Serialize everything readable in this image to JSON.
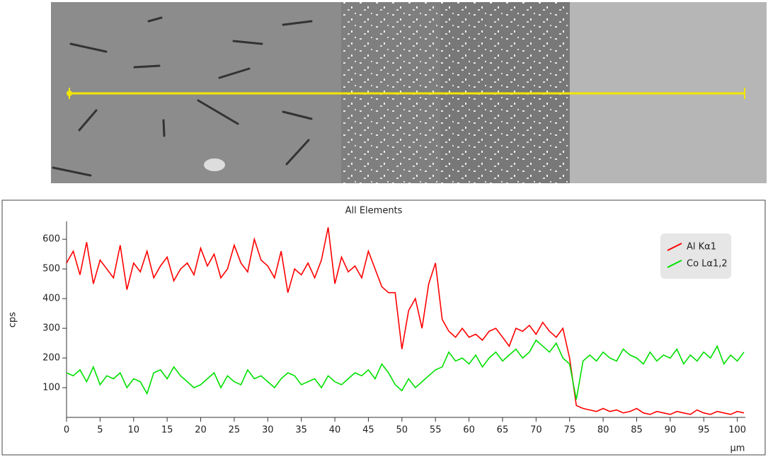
{
  "chart_data": {
    "type": "line",
    "title": "All Elements",
    "y_label": "cps",
    "x_label": "µm",
    "x": [
      0,
      1,
      2,
      3,
      4,
      5,
      6,
      7,
      8,
      9,
      10,
      11,
      12,
      13,
      14,
      15,
      16,
      17,
      18,
      19,
      20,
      21,
      22,
      23,
      24,
      25,
      26,
      27,
      28,
      29,
      30,
      31,
      32,
      33,
      34,
      35,
      36,
      37,
      38,
      39,
      40,
      41,
      42,
      43,
      44,
      45,
      46,
      47,
      48,
      49,
      50,
      51,
      52,
      53,
      54,
      55,
      56,
      57,
      58,
      59,
      60,
      61,
      62,
      63,
      64,
      65,
      66,
      67,
      68,
      69,
      70,
      71,
      72,
      73,
      74,
      75,
      76,
      77,
      78,
      79,
      80,
      81,
      82,
      83,
      84,
      85,
      86,
      87,
      88,
      89,
      90,
      91,
      92,
      93,
      94,
      95,
      96,
      97,
      98,
      99,
      100,
      101
    ],
    "series": [
      {
        "name": "Al Kα1",
        "color": "#ff0000",
        "values": [
          520,
          560,
          480,
          590,
          450,
          530,
          500,
          470,
          580,
          430,
          520,
          490,
          560,
          470,
          510,
          540,
          460,
          500,
          520,
          480,
          570,
          510,
          550,
          470,
          500,
          580,
          520,
          490,
          600,
          530,
          510,
          470,
          560,
          420,
          500,
          480,
          520,
          470,
          530,
          640,
          450,
          540,
          490,
          510,
          470,
          560,
          500,
          440,
          420,
          420,
          230,
          360,
          400,
          300,
          450,
          520,
          330,
          290,
          270,
          300,
          270,
          280,
          260,
          290,
          300,
          270,
          240,
          300,
          290,
          310,
          280,
          320,
          290,
          270,
          300,
          200,
          40,
          30,
          25,
          20,
          30,
          20,
          25,
          15,
          20,
          30,
          15,
          10,
          20,
          15,
          10,
          20,
          15,
          10,
          25,
          15,
          10,
          20,
          15,
          10,
          20,
          15
        ]
      },
      {
        "name": "Co Lα1,2",
        "color": "#00e000",
        "values": [
          150,
          140,
          160,
          120,
          170,
          110,
          140,
          130,
          150,
          100,
          130,
          120,
          80,
          150,
          160,
          130,
          170,
          140,
          120,
          100,
          110,
          130,
          150,
          100,
          140,
          120,
          110,
          160,
          130,
          140,
          120,
          100,
          130,
          150,
          140,
          110,
          120,
          130,
          100,
          140,
          120,
          110,
          130,
          150,
          140,
          160,
          130,
          180,
          150,
          110,
          90,
          130,
          100,
          120,
          140,
          160,
          170,
          220,
          190,
          200,
          180,
          210,
          170,
          200,
          220,
          190,
          210,
          230,
          200,
          220,
          260,
          240,
          220,
          250,
          200,
          180,
          60,
          190,
          210,
          190,
          220,
          200,
          190,
          230,
          210,
          200,
          180,
          220,
          190,
          210,
          200,
          230,
          180,
          210,
          190,
          220,
          200,
          240,
          180,
          210,
          190,
          220
        ]
      }
    ],
    "xlim": [
      0,
      101.2
    ],
    "ylim": [
      0,
      660
    ],
    "xticks": [
      0,
      5,
      10,
      15,
      20,
      25,
      30,
      35,
      40,
      45,
      50,
      55,
      60,
      65,
      70,
      75,
      80,
      85,
      90,
      95,
      100
    ],
    "yticks": [
      100,
      200,
      300,
      400,
      500,
      600
    ],
    "legend": "top-right"
  }
}
